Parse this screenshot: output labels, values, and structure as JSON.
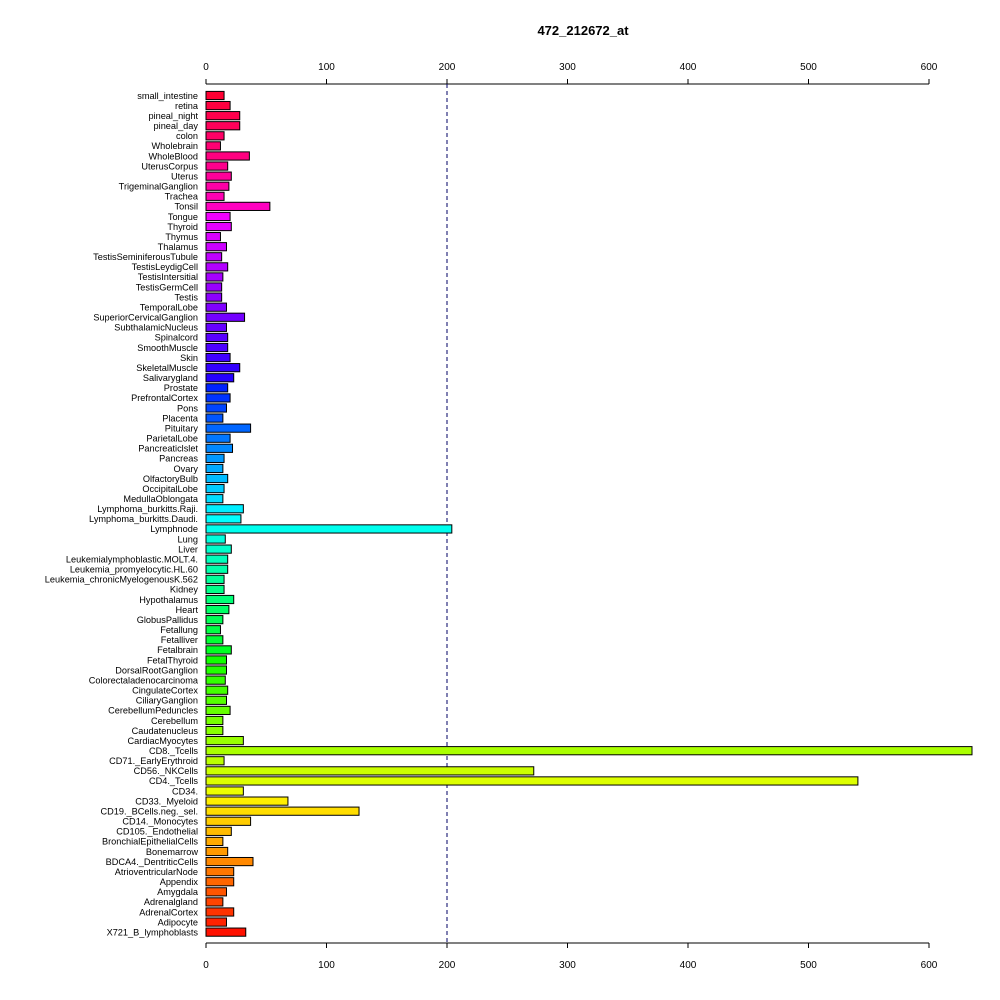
{
  "chart_data": {
    "type": "bar",
    "orientation": "horizontal",
    "title": "472_212672_at",
    "xlabel": "",
    "ylabel": "",
    "xlim": [
      0,
      600
    ],
    "xticks": [
      0,
      100,
      200,
      300,
      400,
      500,
      600
    ],
    "reference_line": 200,
    "grid": false,
    "categories": [
      "small_intestine",
      "retina",
      "pineal_night",
      "pineal_day",
      "colon",
      "Wholebrain",
      "WholeBlood",
      "UterusCorpus",
      "Uterus",
      "TrigeminalGanglion",
      "Trachea",
      "Tonsil",
      "Tongue",
      "Thyroid",
      "Thymus",
      "Thalamus",
      "TestisSeminiferousTubule",
      "TestisLeydigCell",
      "TestisIntersitial",
      "TestisGermCell",
      "Testis",
      "TemporalLobe",
      "SuperiorCervicalGanglion",
      "SubthalamicNucleus",
      "Spinalcord",
      "SmoothMuscle",
      "Skin",
      "SkeletalMuscle",
      "Salivarygland",
      "Prostate",
      "PrefrontalCortex",
      "Pons",
      "Placenta",
      "Pituitary",
      "ParietalLobe",
      "Pancreaticlslet",
      "Pancreas",
      "Ovary",
      "OlfactoryBulb",
      "OccipitalLobe",
      "MedullaOblongata",
      "Lymphoma_burkitts.Raji.",
      "Lymphoma_burkitts.Daudi.",
      "Lymphnode",
      "Lung",
      "Liver",
      "Leukemialymphoblastic.MOLT.4.",
      "Leukemia_promyelocytic.HL.60",
      "Leukemia_chronicMyelogenousK.562",
      "Kidney",
      "Hypothalamus",
      "Heart",
      "GlobusPallidus",
      "Fetallung",
      "Fetalliver",
      "Fetalbrain",
      "FetalThyroid",
      "DorsalRootGanglion",
      "Colorectaladenocarcinoma",
      "CingulateCortex",
      "CiliaryGanglion",
      "CerebellumPeduncles",
      "Cerebellum",
      "Caudatenucleus",
      "CardiacMyocytes",
      "CD8._Tcells",
      "CD71._EarlyErythroid",
      "CD56._NKCells",
      "CD4._Tcells",
      "CD34.",
      "CD33._Myeloid",
      "CD19._BCells.neg._sel.",
      "CD14._Monocytes",
      "CD105._Endothelial",
      "BronchialEpithelialCells",
      "Bonemarrow",
      "BDCA4._DentriticCells",
      "AtrioventricularNode",
      "Appendix",
      "Amygdala",
      "Adrenalgland",
      "AdrenalCortex",
      "Adipocyte",
      "X721_B_lymphoblasts"
    ],
    "values": [
      15,
      20,
      28,
      28,
      15,
      12,
      36,
      18,
      21,
      19,
      15,
      53,
      20,
      21,
      12,
      17,
      13,
      18,
      14,
      13,
      13,
      17,
      32,
      17,
      18,
      18,
      20,
      28,
      23,
      18,
      20,
      17,
      14,
      37,
      20,
      22,
      15,
      14,
      18,
      15,
      14,
      31,
      29,
      204,
      16,
      21,
      18,
      18,
      15,
      15,
      23,
      19,
      14,
      12,
      14,
      21,
      17,
      17,
      16,
      18,
      17,
      20,
      14,
      14,
      31,
      637,
      15,
      272,
      541,
      31,
      68,
      127,
      37,
      21,
      14,
      18,
      39,
      23,
      23,
      17,
      14,
      23,
      17,
      33
    ],
    "colors": [
      "#ff0033",
      "#ff0040",
      "#ff004d",
      "#ff005a",
      "#ff0066",
      "#ff0073",
      "#ff0080",
      "#ff008c",
      "#ff0099",
      "#ff00a6",
      "#ff00b3",
      "#ff00c0",
      "#f200ff",
      "#e600ff",
      "#d900ff",
      "#cc00ff",
      "#bf00ff",
      "#b300ff",
      "#a600ff",
      "#9900ff",
      "#8c00ff",
      "#8000ff",
      "#7300ff",
      "#6600ff",
      "#5900ff",
      "#4d00ff",
      "#4000ff",
      "#3300ff",
      "#2600ff",
      "#0022ff",
      "#0033ff",
      "#0044ff",
      "#0055ff",
      "#0066ff",
      "#0077ff",
      "#0088ff",
      "#0099ff",
      "#00aaff",
      "#00bbff",
      "#00ccff",
      "#00ddff",
      "#00eeff",
      "#00ffff",
      "#00ffee",
      "#00ffdd",
      "#00ffcc",
      "#00ffbb",
      "#00ffaa",
      "#00ff99",
      "#00ff88",
      "#00ff77",
      "#00ff66",
      "#00ff55",
      "#00ff44",
      "#00ff33",
      "#00ff22",
      "#11ff00",
      "#22ff00",
      "#33ff00",
      "#44ff00",
      "#55ff00",
      "#66ff00",
      "#77ff00",
      "#88ff00",
      "#99ff00",
      "#aaff00",
      "#bbff00",
      "#ccff00",
      "#ddff00",
      "#eeff00",
      "#ffee00",
      "#ffdd00",
      "#ffcc00",
      "#ffbb00",
      "#ffaa00",
      "#ff9900",
      "#ff8800",
      "#ff7700",
      "#ff6600",
      "#ff5500",
      "#ff4400",
      "#ff3300",
      "#ff2200",
      "#ff1100"
    ]
  }
}
